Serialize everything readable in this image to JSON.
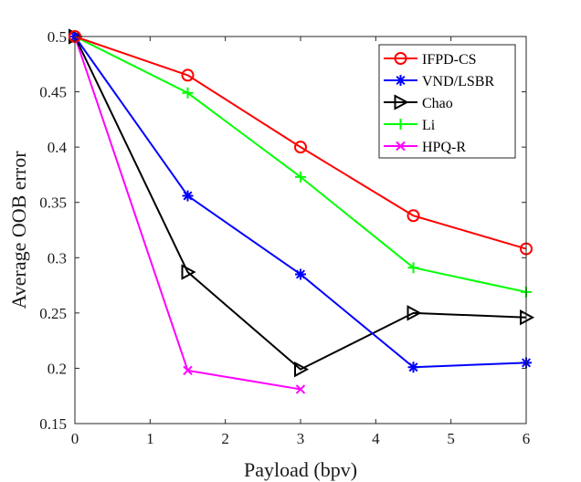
{
  "chart_data": {
    "type": "line",
    "title": "",
    "xlabel": "Payload (bpv)",
    "ylabel": "Average OOB error",
    "xlim": [
      0,
      6
    ],
    "ylim": [
      0.15,
      0.5
    ],
    "xticks": [
      0,
      1,
      2,
      3,
      4,
      5,
      6
    ],
    "xtick_labels": [
      "0",
      "1",
      "2",
      "3",
      "4",
      "5",
      "6"
    ],
    "yticks": [
      0.15,
      0.2,
      0.25,
      0.3,
      0.35,
      0.4,
      0.45,
      0.5
    ],
    "ytick_labels": [
      "0.15",
      "0.2",
      "0.25",
      "0.3",
      "0.35",
      "0.4",
      "0.45",
      "0.5"
    ],
    "grid": false,
    "legend_position": "top-right",
    "series": [
      {
        "name": "IFPD-CS",
        "color": "#ff0000",
        "marker": "circle",
        "x": [
          0,
          1.5,
          3,
          4.5,
          6
        ],
        "y": [
          0.5,
          0.465,
          0.4,
          0.338,
          0.308
        ]
      },
      {
        "name": "VND/LSBR",
        "color": "#0000ff",
        "marker": "asterisk",
        "x": [
          0,
          1.5,
          3,
          4.5,
          6
        ],
        "y": [
          0.5,
          0.356,
          0.285,
          0.201,
          0.205
        ]
      },
      {
        "name": "Chao",
        "color": "#000000",
        "marker": "triangle-right",
        "x": [
          0,
          1.5,
          3,
          4.5,
          6
        ],
        "y": [
          0.5,
          0.287,
          0.199,
          0.25,
          0.246
        ]
      },
      {
        "name": "Li",
        "color": "#00ff00",
        "marker": "plus",
        "x": [
          0,
          1.5,
          3,
          4.5,
          6
        ],
        "y": [
          0.5,
          0.449,
          0.373,
          0.291,
          0.269
        ]
      },
      {
        "name": "HPQ-R",
        "color": "#ff00ff",
        "marker": "x",
        "x": [
          0,
          1.5,
          3
        ],
        "y": [
          0.5,
          0.198,
          0.181
        ]
      }
    ]
  }
}
